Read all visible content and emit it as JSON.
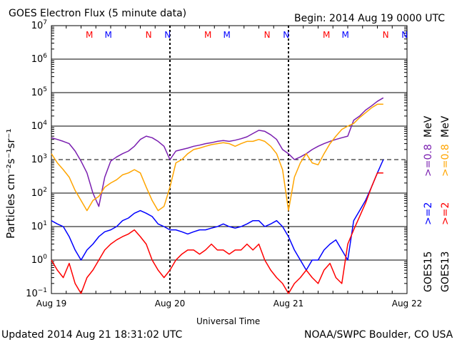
{
  "chart_data": {
    "type": "line",
    "title": "GOES Electron Flux (5 minute data)",
    "begin": "Begin: 2014 Aug 19 0000 UTC",
    "xlabel": "Universal Time",
    "ylabel": "Particles cm⁻²s⁻¹sr⁻¹",
    "x_ticks": [
      "Aug 19",
      "Aug 20",
      "Aug 21",
      "Aug 22"
    ],
    "x_range_days": [
      0,
      3
    ],
    "y_scale": "log",
    "ylim": [
      0.1,
      10000000
    ],
    "y_tick_exponents": [
      -1,
      0,
      1,
      2,
      3,
      4,
      5,
      6,
      7
    ],
    "alert_threshold": 1000,
    "markers": [
      {
        "day": 0.32,
        "letter": "M",
        "color": "#ff0000"
      },
      {
        "day": 0.48,
        "letter": "M",
        "color": "#0000ff"
      },
      {
        "day": 0.82,
        "letter": "N",
        "color": "#ff0000"
      },
      {
        "day": 0.98,
        "letter": "N",
        "color": "#0000ff"
      },
      {
        "day": 1.32,
        "letter": "M",
        "color": "#ff0000"
      },
      {
        "day": 1.48,
        "letter": "M",
        "color": "#0000ff"
      },
      {
        "day": 1.82,
        "letter": "N",
        "color": "#ff0000"
      },
      {
        "day": 1.98,
        "letter": "N",
        "color": "#0000ff"
      },
      {
        "day": 2.32,
        "letter": "M",
        "color": "#ff0000"
      },
      {
        "day": 2.48,
        "letter": "M",
        "color": "#0000ff"
      },
      {
        "day": 2.82,
        "letter": "N",
        "color": "#ff0000"
      },
      {
        "day": 2.98,
        "letter": "N",
        "color": "#0000ff"
      }
    ],
    "series": [
      {
        "name": ">=0.8 MeV",
        "satellite": "GOES15",
        "color": "#7a1fb0",
        "x": [
          0,
          0.05,
          0.1,
          0.15,
          0.2,
          0.25,
          0.3,
          0.35,
          0.4,
          0.45,
          0.5,
          0.55,
          0.6,
          0.65,
          0.7,
          0.75,
          0.8,
          0.85,
          0.9,
          0.95,
          1.0,
          1.05,
          1.1,
          1.15,
          1.2,
          1.25,
          1.3,
          1.35,
          1.4,
          1.45,
          1.5,
          1.55,
          1.6,
          1.65,
          1.7,
          1.75,
          1.8,
          1.85,
          1.9,
          1.95,
          2.0,
          2.05,
          2.1,
          2.15,
          2.2,
          2.25,
          2.3,
          2.35,
          2.4,
          2.45,
          2.5,
          2.55,
          2.6,
          2.65,
          2.7,
          2.75,
          2.8
        ],
        "y": [
          4500,
          4000,
          3500,
          3000,
          1800,
          900,
          400,
          100,
          40,
          300,
          900,
          1200,
          1500,
          1800,
          2500,
          4000,
          5000,
          4500,
          3500,
          2500,
          1000,
          1800,
          2000,
          2200,
          2500,
          2700,
          3000,
          3200,
          3500,
          3700,
          3500,
          3800,
          4200,
          4800,
          6000,
          7500,
          7000,
          5500,
          4000,
          2000,
          1500,
          1000,
          1200,
          1500,
          2000,
          2500,
          3000,
          3500,
          4000,
          4500,
          5000,
          15000,
          20000,
          30000,
          40000,
          55000,
          70000
        ]
      },
      {
        "name": ">=0.8 MeV",
        "satellite": "GOES13",
        "color": "#ffa500",
        "x": [
          0,
          0.05,
          0.1,
          0.15,
          0.2,
          0.25,
          0.3,
          0.35,
          0.4,
          0.45,
          0.5,
          0.55,
          0.6,
          0.65,
          0.7,
          0.75,
          0.8,
          0.85,
          0.9,
          0.95,
          1.0,
          1.05,
          1.1,
          1.15,
          1.2,
          1.25,
          1.3,
          1.35,
          1.4,
          1.45,
          1.5,
          1.55,
          1.6,
          1.65,
          1.7,
          1.75,
          1.8,
          1.85,
          1.9,
          1.95,
          2.0,
          2.05,
          2.1,
          2.15,
          2.2,
          2.25,
          2.3,
          2.35,
          2.4,
          2.45,
          2.5,
          2.55,
          2.6,
          2.65,
          2.7,
          2.75,
          2.8
        ],
        "y": [
          1500,
          800,
          500,
          300,
          120,
          60,
          30,
          60,
          80,
          150,
          200,
          250,
          350,
          400,
          500,
          400,
          150,
          60,
          30,
          40,
          150,
          800,
          1000,
          1500,
          2000,
          2200,
          2500,
          2800,
          3000,
          3200,
          3000,
          2500,
          3000,
          3500,
          3500,
          4000,
          3500,
          2500,
          1500,
          500,
          30,
          300,
          800,
          1500,
          800,
          700,
          1500,
          3000,
          5000,
          8000,
          10000,
          12000,
          18000,
          25000,
          35000,
          45000,
          45000
        ]
      },
      {
        "name": ">=2 MeV",
        "satellite": "GOES15",
        "color": "#0000ff",
        "x": [
          0,
          0.05,
          0.1,
          0.15,
          0.2,
          0.25,
          0.3,
          0.35,
          0.4,
          0.45,
          0.5,
          0.55,
          0.6,
          0.65,
          0.7,
          0.75,
          0.8,
          0.85,
          0.9,
          0.95,
          1.0,
          1.05,
          1.1,
          1.15,
          1.2,
          1.25,
          1.3,
          1.35,
          1.4,
          1.45,
          1.5,
          1.55,
          1.6,
          1.65,
          1.7,
          1.75,
          1.8,
          1.85,
          1.9,
          1.95,
          2.0,
          2.05,
          2.1,
          2.15,
          2.2,
          2.25,
          2.3,
          2.35,
          2.4,
          2.45,
          2.5,
          2.55,
          2.6,
          2.65,
          2.7,
          2.75,
          2.8
        ],
        "y": [
          15,
          12,
          10,
          5,
          2,
          1,
          2,
          3,
          5,
          7,
          8,
          10,
          15,
          18,
          25,
          30,
          25,
          20,
          12,
          10,
          8,
          8,
          7,
          6,
          7,
          8,
          8,
          9,
          10,
          12,
          10,
          9,
          10,
          12,
          15,
          15,
          10,
          12,
          15,
          10,
          5,
          2,
          1,
          0.5,
          1,
          1,
          2,
          3,
          4,
          2,
          1,
          15,
          30,
          60,
          150,
          400,
          1000
        ]
      },
      {
        "name": ">=2 MeV",
        "satellite": "GOES13",
        "color": "#ff0000",
        "x": [
          0,
          0.05,
          0.1,
          0.15,
          0.2,
          0.25,
          0.3,
          0.35,
          0.4,
          0.45,
          0.5,
          0.55,
          0.6,
          0.65,
          0.7,
          0.75,
          0.8,
          0.85,
          0.9,
          0.95,
          1.0,
          1.05,
          1.1,
          1.15,
          1.2,
          1.25,
          1.3,
          1.35,
          1.4,
          1.45,
          1.5,
          1.55,
          1.6,
          1.65,
          1.7,
          1.75,
          1.8,
          1.85,
          1.9,
          1.95,
          2.0,
          2.05,
          2.1,
          2.15,
          2.2,
          2.25,
          2.3,
          2.35,
          2.4,
          2.45,
          2.5,
          2.55,
          2.6,
          2.65,
          2.7,
          2.75,
          2.8
        ],
        "y": [
          1,
          0.5,
          0.3,
          0.8,
          0.2,
          0.1,
          0.3,
          0.5,
          1,
          2,
          3,
          4,
          5,
          6,
          8,
          5,
          3,
          1,
          0.5,
          0.3,
          0.5,
          1,
          1.5,
          2,
          2,
          1.5,
          2,
          3,
          2,
          2,
          1.5,
          2,
          2,
          3,
          2,
          3,
          1,
          0.5,
          0.3,
          0.2,
          0.1,
          0.2,
          0.3,
          0.5,
          0.3,
          0.2,
          0.5,
          0.8,
          0.3,
          0.2,
          3,
          8,
          20,
          50,
          150,
          400,
          400
        ]
      }
    ],
    "right_labels": {
      "top_purple": ">=0.8",
      "top_orange": ">=0.8",
      "top_unit": "MeV",
      "mid_blue": ">=2",
      "mid_red": ">=2",
      "sat_purple": "GOES15",
      "sat_orange": "GOES13"
    }
  },
  "footer": {
    "updated": "Updated 2014 Aug 21 18:31:02 UTC",
    "credit": "NOAA/SWPC Boulder, CO USA"
  }
}
